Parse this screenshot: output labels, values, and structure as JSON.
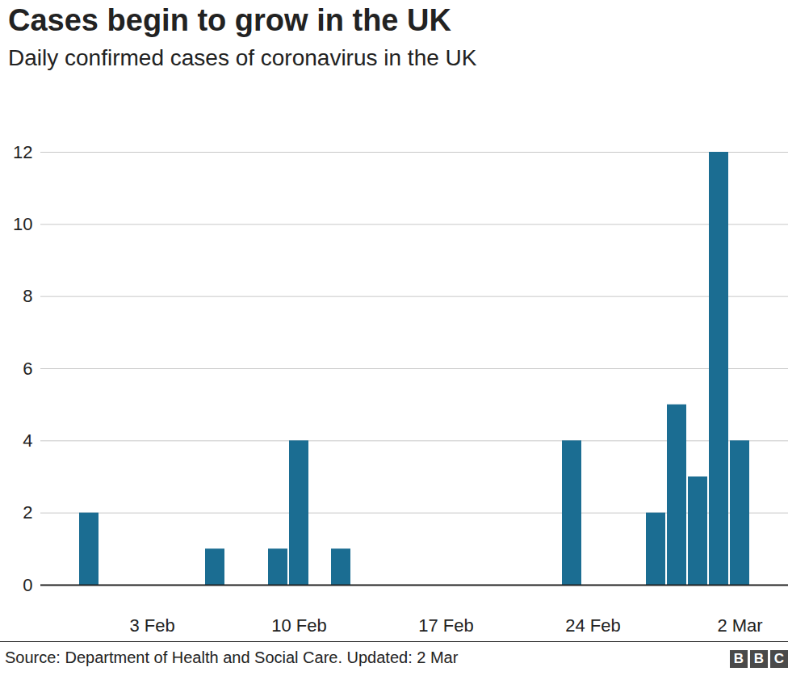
{
  "chart_data": {
    "type": "bar",
    "title": "Cases begin to grow in the UK",
    "subtitle": "Daily confirmed cases of coronavirus in the UK",
    "source": "Source: Department of Health and Social Care. Updated: 2 Mar",
    "logo": "BBC",
    "categories": [
      null,
      null,
      null,
      "3 Feb",
      null,
      null,
      null,
      null,
      null,
      null,
      "10 Feb",
      null,
      null,
      null,
      null,
      null,
      null,
      "17 Feb",
      null,
      null,
      null,
      null,
      null,
      null,
      "24 Feb",
      null,
      null,
      null,
      null,
      null,
      null,
      "2 Mar"
    ],
    "values": [
      2,
      0,
      0,
      0,
      0,
      0,
      1,
      0,
      0,
      1,
      4,
      0,
      1,
      0,
      0,
      0,
      0,
      0,
      0,
      0,
      0,
      0,
      0,
      4,
      0,
      0,
      0,
      2,
      5,
      3,
      12,
      4
    ],
    "color": "#1b6d92",
    "ylim": [
      0,
      12
    ],
    "yticks": [
      0,
      2,
      4,
      6,
      8,
      10,
      12
    ],
    "grid": true
  }
}
